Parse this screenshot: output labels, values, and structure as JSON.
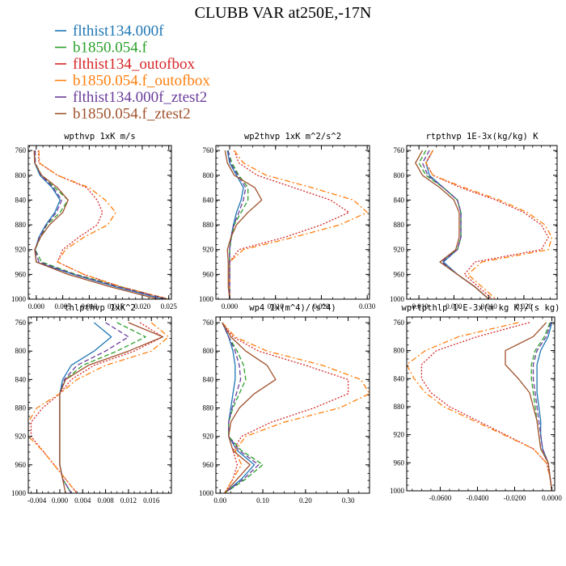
{
  "title": "CLUBB VAR at250E,-17N",
  "legend": [
    {
      "name": "flthist134.000f",
      "color": "#1f77b4",
      "dash": "solid"
    },
    {
      "name": "b1850.054.f",
      "color": "#2ca02c",
      "dash": "dash"
    },
    {
      "name": "flthist134_outofbox",
      "color": "#d62728",
      "dash": "dot"
    },
    {
      "name": "b1850.054.f_outofbox",
      "color": "#ff7f0e",
      "dash": "dashdot"
    },
    {
      "name": "flthist134.000f_ztest2",
      "color": "#6a3d9a",
      "dash": "dash"
    },
    {
      "name": "b1850.054.f_ztest2",
      "color": "#a0522d",
      "dash": "solid"
    }
  ],
  "chart_data": [
    {
      "type": "line",
      "title": "wpthvp  1xK m/s",
      "xlim": [
        -0.0015,
        0.0255
      ],
      "ylim": [
        1000,
        752
      ],
      "y_inverted": true,
      "xticks": [
        {
          "v": 0,
          "t": "0.000"
        },
        {
          "v": 0.005,
          "t": "0.005"
        },
        {
          "v": 0.01,
          "t": "0.010"
        },
        {
          "v": 0.015,
          "t": "0.015"
        },
        {
          "v": 0.02,
          "t": "0.020"
        },
        {
          "v": 0.025,
          "t": "0.025"
        }
      ],
      "yticks": [
        760,
        800,
        840,
        880,
        920,
        960,
        1000
      ],
      "y": [
        760,
        780,
        800,
        820,
        840,
        860,
        880,
        900,
        920,
        940,
        960,
        980,
        1000
      ],
      "series": [
        {
          "name": "flthist134.000f",
          "values": [
            -0.0003,
            -0.0003,
            0.0007,
            0.003,
            0.0045,
            0.0035,
            0.0018,
            0.0005,
            -0.0002,
            0,
            0.007,
            0.015,
            0.024
          ]
        },
        {
          "name": "b1850.054.f",
          "values": [
            -0.0002,
            -0.0002,
            0.001,
            0.0035,
            0.006,
            0.0045,
            0.002,
            0.0008,
            -0.0002,
            0.001,
            0.0075,
            0.016,
            0.025
          ]
        },
        {
          "name": "flthist134_outofbox",
          "values": [
            0.0004,
            0.0005,
            0.004,
            0.0095,
            0.0115,
            0.0125,
            0.0115,
            0.008,
            0.005,
            0.004,
            0.009,
            0.016,
            0.025
          ]
        },
        {
          "name": "b1850.054.f_outofbox",
          "values": [
            0.0005,
            0.0006,
            0.004,
            0.01,
            0.013,
            0.015,
            0.0135,
            0.009,
            0.0055,
            0.004,
            0.009,
            0.016,
            0.025
          ]
        },
        {
          "name": "flthist134.000f_ztest2",
          "values": [
            -0.0002,
            -0.0002,
            0.0009,
            0.0032,
            0.0048,
            0.0038,
            0.0019,
            0.0006,
            -0.0002,
            0.0005,
            0.0072,
            0.0155,
            0.0245
          ]
        },
        {
          "name": "b1850.054.f_ztest2",
          "values": [
            -0.0004,
            -0.0003,
            0.001,
            0.004,
            0.006,
            0.005,
            0.0025,
            0.0008,
            -0.0003,
            0,
            0.006,
            0.014,
            0.023
          ]
        }
      ]
    },
    {
      "type": "line",
      "title": "wp2thvp  1xK m^2/s^2",
      "xlim": [
        -0.003,
        0.0305
      ],
      "ylim": [
        1000,
        752
      ],
      "y_inverted": true,
      "xticks": [
        {
          "v": 0,
          "t": "0.000"
        },
        {
          "v": 0.01,
          "t": "0.010"
        },
        {
          "v": 0.02,
          "t": "0.020"
        },
        {
          "v": 0.03,
          "t": "0.030"
        }
      ],
      "yticks": [
        760,
        800,
        840,
        880,
        920,
        960,
        1000
      ],
      "y": [
        760,
        780,
        800,
        820,
        840,
        860,
        880,
        900,
        920,
        940,
        960,
        980,
        1000
      ],
      "series": [
        {
          "name": "flthist134.000f",
          "values": [
            -0.0005,
            0,
            0.0015,
            0.003,
            0.0025,
            0.0015,
            0.0008,
            0.0003,
            0,
            0,
            0,
            0,
            0
          ]
        },
        {
          "name": "b1850.054.f",
          "values": [
            -0.0004,
            0.0005,
            0.002,
            0.004,
            0.004,
            0.0025,
            0.001,
            0.0004,
            0,
            0,
            0,
            0,
            0
          ]
        },
        {
          "name": "flthist134_outofbox",
          "values": [
            0.001,
            0.002,
            0.006,
            0.014,
            0.022,
            0.026,
            0.02,
            0.012,
            0.002,
            0,
            0,
            0,
            0
          ]
        },
        {
          "name": "b1850.054.f_outofbox",
          "values": [
            0.001,
            0.003,
            0.008,
            0.018,
            0.027,
            0.03,
            0.024,
            0.014,
            0.003,
            0,
            0,
            0,
            0
          ]
        },
        {
          "name": "flthist134.000f_ztest2",
          "values": [
            -0.0003,
            0.0002,
            0.0018,
            0.0035,
            0.003,
            0.002,
            0.0009,
            0.0003,
            0,
            0,
            0,
            0,
            0
          ]
        },
        {
          "name": "b1850.054.f_ztest2",
          "values": [
            -0.001,
            -0.0005,
            0.001,
            0.0055,
            0.007,
            0.004,
            0.0015,
            0.0003,
            -0.0005,
            -0.0003,
            -0.0003,
            -0.0003,
            0
          ]
        }
      ]
    },
    {
      "type": "line",
      "title": "rtpthvp  1E-3x(kg/kg) K",
      "xlim": [
        -0.0135,
        0.0295
      ],
      "ylim": [
        1000,
        752
      ],
      "y_inverted": true,
      "xticks": [
        {
          "v": -0.01,
          "t": "-0.010"
        },
        {
          "v": 0,
          "t": "0.000"
        },
        {
          "v": 0.01,
          "t": "0.010"
        },
        {
          "v": 0.02,
          "t": "0.020"
        }
      ],
      "yticks": [
        760,
        800,
        840,
        880,
        920,
        960,
        1000
      ],
      "y": [
        760,
        780,
        800,
        820,
        840,
        860,
        880,
        900,
        920,
        940,
        960,
        980,
        1000
      ],
      "series": [
        {
          "name": "flthist134.000f",
          "values": [
            -0.006,
            -0.008,
            -0.007,
            -0.003,
            0.001,
            0.002,
            0.002,
            0.002,
            0.001,
            -0.003,
            0.001,
            0.006,
            0.01
          ]
        },
        {
          "name": "b1850.054.f",
          "values": [
            -0.008,
            -0.01,
            -0.008,
            -0.003,
            0.001,
            0.002,
            0.002,
            0.002,
            0.001,
            -0.004,
            0.001,
            0.006,
            0.01
          ]
        },
        {
          "name": "flthist134_outofbox",
          "values": [
            -0.006,
            -0.008,
            -0.006,
            0.002,
            0.012,
            0.02,
            0.025,
            0.027,
            0.025,
            0.006,
            0.003,
            0.007,
            0.011
          ]
        },
        {
          "name": "b1850.054.f_outofbox",
          "values": [
            -0.006,
            -0.008,
            -0.006,
            0.003,
            0.013,
            0.021,
            0.026,
            0.028,
            0.027,
            0.008,
            0.004,
            0.008,
            0.012
          ]
        },
        {
          "name": "flthist134.000f_ztest2",
          "values": [
            -0.007,
            -0.009,
            -0.0075,
            -0.003,
            0.001,
            0.002,
            0.002,
            0.002,
            0.001,
            -0.0035,
            0.001,
            0.006,
            0.01
          ]
        },
        {
          "name": "b1850.054.f_ztest2",
          "values": [
            -0.009,
            -0.011,
            -0.009,
            -0.004,
            0,
            0.0015,
            0.0015,
            0.0015,
            0.0005,
            -0.004,
            0.001,
            0.006,
            0.01
          ]
        }
      ]
    },
    {
      "type": "line",
      "title": "thlpthvp  1xK^2",
      "xlim": [
        -0.0055,
        0.0195
      ],
      "ylim": [
        1000,
        752
      ],
      "y_inverted": true,
      "xticks": [
        {
          "v": -0.004,
          "t": "-0.004"
        },
        {
          "v": 0,
          "t": "0.000"
        },
        {
          "v": 0.004,
          "t": "0.004"
        },
        {
          "v": 0.008,
          "t": "0.008"
        },
        {
          "v": 0.012,
          "t": "0.012"
        },
        {
          "v": 0.016,
          "t": "0.016"
        }
      ],
      "yticks": [
        760,
        800,
        840,
        880,
        920,
        960,
        1000
      ],
      "y": [
        760,
        780,
        800,
        820,
        840,
        860,
        880,
        900,
        920,
        940,
        960,
        980,
        1000
      ],
      "series": [
        {
          "name": "flthist134.000f",
          "values": [
            0.006,
            0.009,
            0.006,
            0.002,
            0.0005,
            0,
            0,
            0,
            0,
            0,
            0,
            0.0005,
            0.002
          ]
        },
        {
          "name": "b1850.054.f",
          "values": [
            0.01,
            0.015,
            0.01,
            0.004,
            0.001,
            0,
            0,
            0,
            0,
            0,
            0,
            0.0005,
            0.002
          ]
        },
        {
          "name": "flthist134_outofbox",
          "values": [
            0.014,
            0.018,
            0.013,
            0.006,
            0.002,
            0,
            -0.003,
            -0.005,
            -0.005,
            -0.003,
            -0.001,
            0.001,
            0.003
          ]
        },
        {
          "name": "b1850.054.f_outofbox",
          "values": [
            0.016,
            0.019,
            0.016,
            0.008,
            0.003,
            0,
            -0.004,
            -0.0055,
            -0.0055,
            -0.003,
            -0.001,
            0.001,
            0.003
          ]
        },
        {
          "name": "flthist134.000f_ztest2",
          "values": [
            0.008,
            0.012,
            0.008,
            0.003,
            0.0008,
            0,
            0,
            0,
            0,
            0,
            0,
            0.0005,
            0.002
          ]
        },
        {
          "name": "b1850.054.f_ztest2",
          "values": [
            0.012,
            0.018,
            0.012,
            0.005,
            0.001,
            0,
            0,
            0,
            0,
            0,
            0,
            0.0005,
            0.001
          ]
        }
      ]
    },
    {
      "type": "line",
      "title": "wp4  1x(m^4)/(s^4)",
      "xlim": [
        -0.01,
        0.35
      ],
      "ylim": [
        1000,
        752
      ],
      "y_inverted": true,
      "xticks": [
        {
          "v": 0,
          "t": "0.00"
        },
        {
          "v": 0.1,
          "t": "0.10"
        },
        {
          "v": 0.2,
          "t": "0.20"
        },
        {
          "v": 0.3,
          "t": "0.30"
        }
      ],
      "yticks": [
        760,
        800,
        840,
        880,
        920,
        960,
        1000
      ],
      "y": [
        760,
        780,
        800,
        820,
        840,
        860,
        880,
        900,
        920,
        940,
        960,
        980,
        1000
      ],
      "series": [
        {
          "name": "flthist134.000f",
          "values": [
            0.005,
            0.02,
            0.03,
            0.035,
            0.035,
            0.03,
            0.025,
            0.02,
            0.02,
            0.04,
            0.08,
            0.05,
            0.01
          ]
        },
        {
          "name": "b1850.054.f",
          "values": [
            0.005,
            0.02,
            0.04,
            0.055,
            0.06,
            0.045,
            0.03,
            0.02,
            0.02,
            0.05,
            0.1,
            0.06,
            0.01
          ]
        },
        {
          "name": "flthist134_outofbox",
          "values": [
            0.005,
            0.03,
            0.09,
            0.2,
            0.3,
            0.3,
            0.22,
            0.12,
            0.05,
            0.03,
            0.04,
            0.03,
            0.01
          ]
        },
        {
          "name": "b1850.054.f_outofbox",
          "values": [
            0.005,
            0.035,
            0.11,
            0.24,
            0.33,
            0.35,
            0.28,
            0.15,
            0.06,
            0.035,
            0.05,
            0.03,
            0.01
          ]
        },
        {
          "name": "flthist134.000f_ztest2",
          "values": [
            0.005,
            0.02,
            0.035,
            0.045,
            0.048,
            0.038,
            0.028,
            0.02,
            0.02,
            0.045,
            0.09,
            0.055,
            0.01
          ]
        },
        {
          "name": "b1850.054.f_ztest2",
          "values": [
            0.005,
            0.025,
            0.06,
            0.11,
            0.13,
            0.08,
            0.045,
            0.025,
            0.02,
            0.03,
            0.07,
            0.04,
            0.01
          ]
        }
      ]
    },
    {
      "type": "line",
      "title": "wprtpthlp  1-E-3x(m kg K)/(s kg)",
      "xlim": [
        -0.078,
        0.0015
      ],
      "ylim": [
        1000,
        752
      ],
      "y_inverted": true,
      "xticks": [
        {
          "v": -0.06,
          "t": "-0.0600"
        },
        {
          "v": -0.04,
          "t": "-0.0400"
        },
        {
          "v": -0.02,
          "t": "-0.0200"
        },
        {
          "v": 0,
          "t": "0.0000"
        }
      ],
      "yticks": [
        760,
        800,
        840,
        880,
        920,
        960,
        1000
      ],
      "y": [
        760,
        780,
        800,
        820,
        840,
        860,
        880,
        900,
        920,
        940,
        960,
        980,
        1000
      ],
      "series": [
        {
          "name": "flthist134.000f",
          "values": [
            0,
            -0.002,
            -0.006,
            -0.008,
            -0.008,
            -0.008,
            -0.007,
            -0.006,
            -0.006,
            -0.005,
            -0.002,
            -0.001,
            0
          ]
        },
        {
          "name": "b1850.054.f",
          "values": [
            -0.001,
            -0.004,
            -0.009,
            -0.011,
            -0.011,
            -0.01,
            -0.009,
            -0.008,
            -0.007,
            -0.006,
            -0.002,
            -0.001,
            0
          ]
        },
        {
          "name": "flthist134_outofbox",
          "values": [
            -0.012,
            -0.04,
            -0.062,
            -0.07,
            -0.07,
            -0.065,
            -0.055,
            -0.04,
            -0.025,
            -0.01,
            -0.003,
            -0.001,
            0
          ]
        },
        {
          "name": "b1850.054.f_outofbox",
          "values": [
            -0.018,
            -0.05,
            -0.068,
            -0.078,
            -0.074,
            -0.068,
            -0.058,
            -0.042,
            -0.026,
            -0.01,
            -0.003,
            -0.001,
            0
          ]
        },
        {
          "name": "flthist134.000f_ztest2",
          "values": [
            -0.0005,
            -0.003,
            -0.008,
            -0.01,
            -0.01,
            -0.009,
            -0.008,
            -0.007,
            -0.006,
            -0.005,
            -0.002,
            -0.001,
            0
          ]
        },
        {
          "name": "b1850.054.f_ztest2",
          "values": [
            -0.003,
            -0.01,
            -0.025,
            -0.025,
            -0.018,
            -0.012,
            -0.01,
            -0.008,
            -0.007,
            -0.006,
            -0.002,
            -0.001,
            0
          ]
        }
      ]
    }
  ]
}
